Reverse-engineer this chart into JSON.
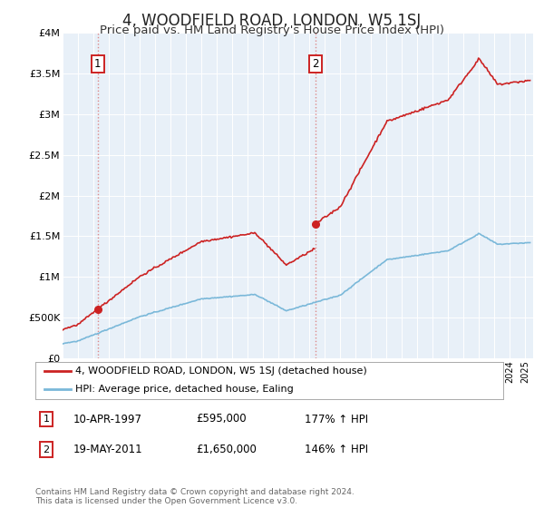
{
  "title": "4, WOODFIELD ROAD, LONDON, W5 1SJ",
  "subtitle": "Price paid vs. HM Land Registry's House Price Index (HPI)",
  "title_fontsize": 12,
  "subtitle_fontsize": 9.5,
  "background_color": "#ffffff",
  "plot_bg_color": "#e8f0f8",
  "grid_color": "#ffffff",
  "purchase1_date": 1997.28,
  "purchase1_price": 595000,
  "purchase2_date": 2011.38,
  "purchase2_price": 1650000,
  "ylim": [
    0,
    4000000
  ],
  "xlim": [
    1995,
    2025.5
  ],
  "legend_line1": "4, WOODFIELD ROAD, LONDON, W5 1SJ (detached house)",
  "legend_line2": "HPI: Average price, detached house, Ealing",
  "annotation1_label": "1",
  "annotation2_label": "2",
  "footer": "Contains HM Land Registry data © Crown copyright and database right 2024.\nThis data is licensed under the Open Government Licence v3.0.",
  "hpi_color": "#7ab8d9",
  "price_color": "#cc2222",
  "vline_color": "#dd8888"
}
